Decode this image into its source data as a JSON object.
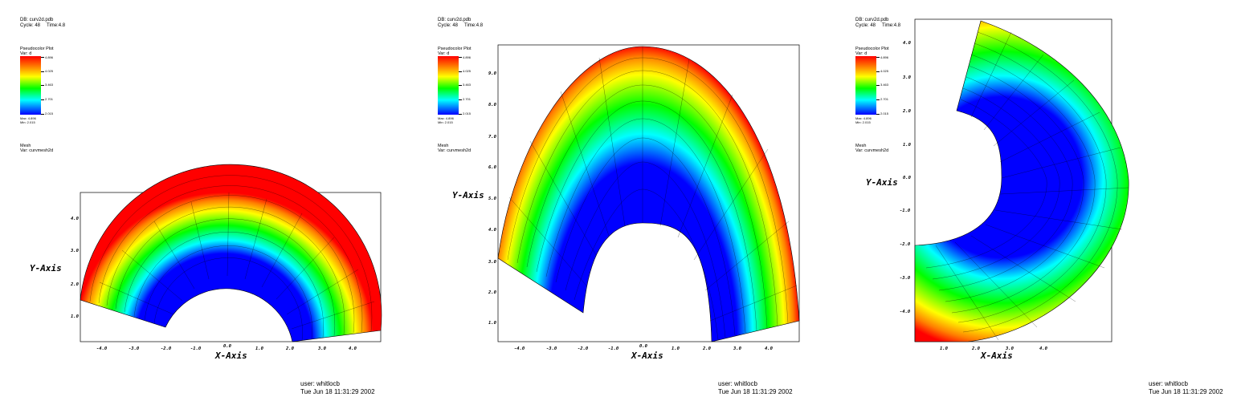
{
  "panels": [
    {
      "db": "DB: curv2d.pdb",
      "cycle": "Cycle: 48",
      "time": "Time:4.8",
      "plot_title": "Pseudocolor Plot",
      "var": "Var:  d",
      "colorbar_labels": [
        "4.896",
        "4.025",
        "3.463",
        "2.701",
        "2.015"
      ],
      "max": "Max: 4.896",
      "min": "Min: 2.015",
      "mesh_title": "Mesh",
      "mesh_var": "Var:  curvmesh2d",
      "x_axis": "X-Axis",
      "y_axis": "Y-Axis",
      "x_ticks": [
        "-4.0",
        "-3.0",
        "-2.0",
        "-1.0",
        "0.0",
        "1.0",
        "2.0",
        "3.0",
        "4.0"
      ],
      "y_ticks": [
        "4.0",
        "3.0",
        "2.0",
        "1.0"
      ],
      "user": "user: whitlocb",
      "date": "Tue Jun 18 11:31:29 2002"
    },
    {
      "db": "DB: curv2d.pdb",
      "cycle": "Cycle: 48",
      "time": "Time:4.8",
      "plot_title": "Pseudocolor Plot",
      "var": "Var:  d",
      "colorbar_labels": [
        "4.896",
        "4.025",
        "3.463",
        "2.701",
        "2.015"
      ],
      "max": "Max: 4.896",
      "min": "Min: 2.015",
      "mesh_title": "Mesh",
      "mesh_var": "Var:  curvmesh2d",
      "x_axis": "X-Axis",
      "y_axis": "Y-Axis",
      "x_ticks": [
        "-4.0",
        "-3.0",
        "-2.0",
        "-1.0",
        "0.0",
        "1.0",
        "2.0",
        "3.0",
        "4.0"
      ],
      "y_ticks": [
        "9.0",
        "8.0",
        "7.0",
        "6.0",
        "5.0",
        "4.0",
        "3.0",
        "2.0",
        "1.0"
      ],
      "user": "user: whitlocb",
      "date": "Tue Jun 18 11:31:29 2002"
    },
    {
      "db": "DB: curv2d.pdb",
      "cycle": "Cycle: 48",
      "time": "Time:4.8",
      "plot_title": "Pseudocolor Plot",
      "var": "Var:  d",
      "colorbar_labels": [
        "4.896",
        "4.025",
        "3.463",
        "2.701",
        "2.015"
      ],
      "max": "Max: 4.896",
      "min": "Min: 2.015",
      "mesh_title": "Mesh",
      "mesh_var": "Var:  curvmesh2d",
      "x_axis": "X-Axis",
      "y_axis": "Y-Axis",
      "x_ticks": [
        "1.0",
        "2.0",
        "3.0",
        "4.0"
      ],
      "y_ticks": [
        "4.0",
        "3.0",
        "2.0",
        "1.0",
        "0.0",
        "-1.0",
        "-2.0",
        "-3.0",
        "-4.0"
      ],
      "user": "user: whitlocb",
      "date": "Tue Jun 18 11:31:29 2002"
    }
  ]
}
